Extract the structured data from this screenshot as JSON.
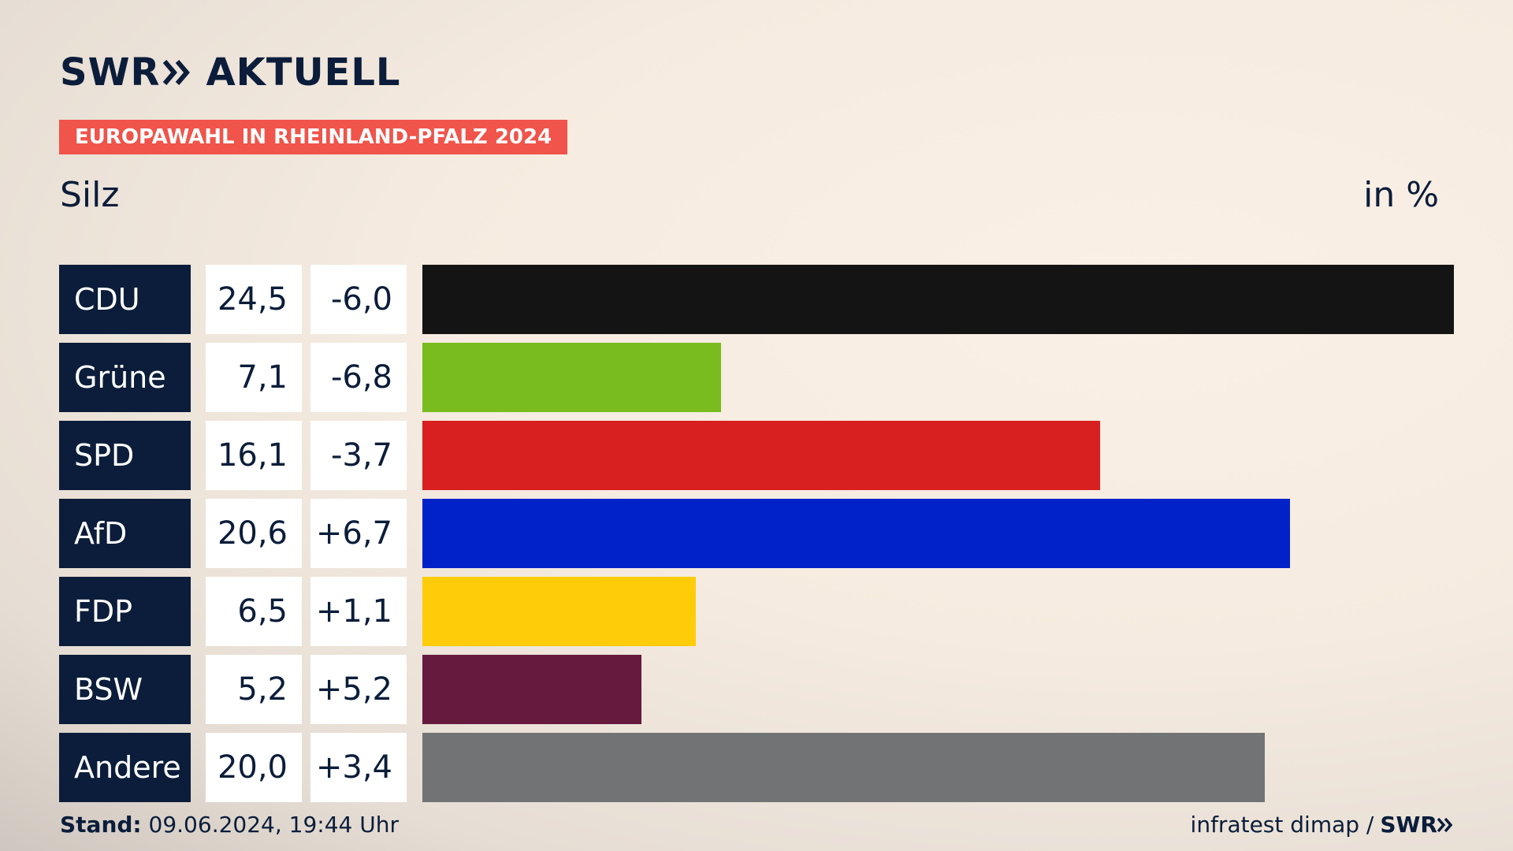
{
  "header": {
    "logo_brand": "SWR",
    "logo_section": "AKTUELL",
    "banner": "EUROPAWAHL IN RHEINLAND-PFALZ 2024",
    "place": "Silz",
    "unit": "in %"
  },
  "footer": {
    "stand_label": "Stand:",
    "stand_value": "09.06.2024, 19:44 Uhr",
    "source": "infratest dimap /",
    "source_brand": "SWR"
  },
  "colors": {
    "navy": "#0b1d3a",
    "banner": "#f0544a"
  },
  "chart_data": {
    "type": "bar",
    "categories": [
      "CDU",
      "Grüne",
      "SPD",
      "AfD",
      "FDP",
      "BSW",
      "Andere"
    ],
    "values": [
      24.5,
      7.1,
      16.1,
      20.6,
      6.5,
      5.2,
      20.0
    ],
    "value_labels": [
      "24,5",
      "7,1",
      "16,1",
      "20,6",
      "6,5",
      "5,2",
      "20,0"
    ],
    "change_labels": [
      "-6,0",
      "-6,8",
      "-3,7",
      "+6,7",
      "+1,1",
      "+5,2",
      "+3,4"
    ],
    "changes": [
      -6.0,
      -6.8,
      -3.7,
      6.7,
      1.1,
      5.2,
      3.4
    ],
    "colors": [
      "#141414",
      "#78bc1e",
      "#d7201f",
      "#0022c8",
      "#ffcc09",
      "#661a3e",
      "#727375"
    ],
    "xlim": [
      0,
      24.5
    ]
  }
}
